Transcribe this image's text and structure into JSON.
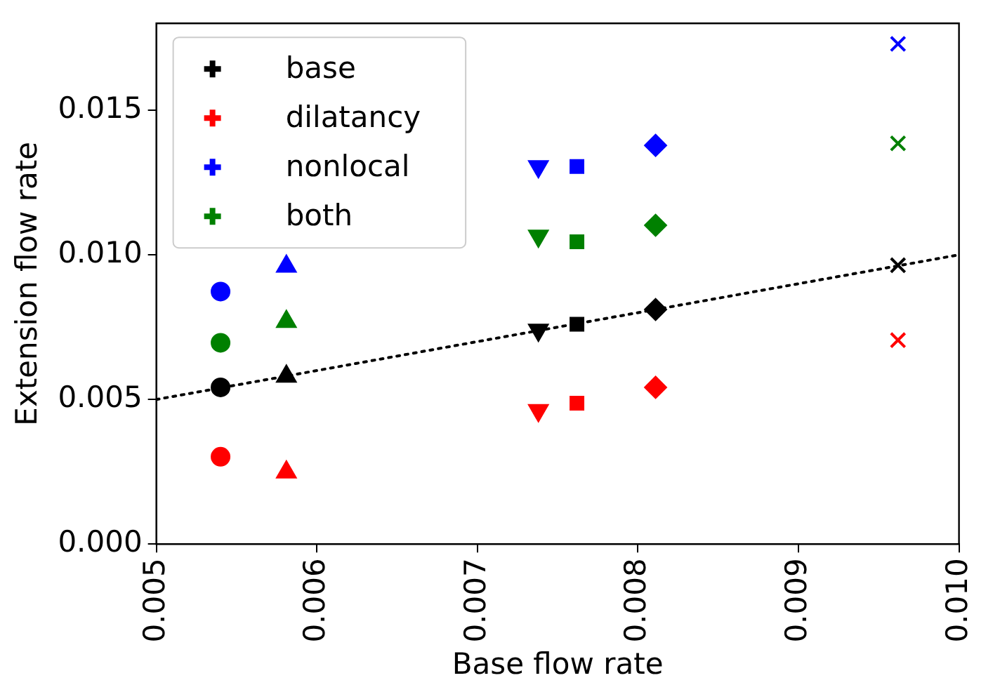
{
  "chart_data": {
    "type": "scatter",
    "xlabel": "Base flow rate",
    "ylabel": "Extension flow rate",
    "xlim": [
      0.005,
      0.01
    ],
    "xticks": [
      0.005,
      0.006,
      0.007,
      0.008,
      0.009,
      {
        "value": 0.01,
        "label": "0.010"
      }
    ],
    "ylim": [
      0.0,
      0.018
    ],
    "yticks": [
      {
        "value": 0,
        "label": "0.000"
      },
      0.005,
      {
        "value": 0.01,
        "label": "0.010"
      },
      0.015
    ],
    "grid": false,
    "legend": "top left",
    "x": [
      0.0054,
      0.00581,
      0.00738,
      0.00762,
      0.00811,
      0.00962
    ],
    "series": [
      {
        "name": "base",
        "color": "#000000",
        "marker": [
          "circle",
          "triangle",
          "triangle_down",
          "square",
          "diamond",
          "x"
        ],
        "values": [
          0.00542,
          0.0058,
          0.0074,
          0.0076,
          0.00811,
          0.00964
        ]
      },
      {
        "name": "dilatancy",
        "color": "#ff0000",
        "marker": [
          "circle",
          "triangle",
          "triangle_down",
          "square",
          "diamond",
          "x"
        ],
        "values": [
          0.00302,
          0.00249,
          0.00462,
          0.00487,
          0.00542,
          0.00705
        ]
      },
      {
        "name": "nonlocal",
        "color": "#0000ff",
        "marker": [
          "circle",
          "triangle",
          "triangle_down",
          "square",
          "diamond",
          "x"
        ],
        "values": [
          0.00873,
          0.0096,
          0.01305,
          0.01305,
          0.01378,
          0.01729
        ]
      },
      {
        "name": "both",
        "color": "#008000",
        "marker": [
          "circle",
          "triangle",
          "triangle_down",
          "square",
          "diamond",
          "x"
        ],
        "values": [
          0.00696,
          0.00769,
          0.01065,
          0.01045,
          0.01102,
          0.01385
        ]
      },
      {
        "type": "line",
        "color": "#000000",
        "marker": "none",
        "line_style": "dotted",
        "x": [
          0.005,
          0.01
        ],
        "values": [
          0.005,
          0.01
        ]
      }
    ]
  }
}
